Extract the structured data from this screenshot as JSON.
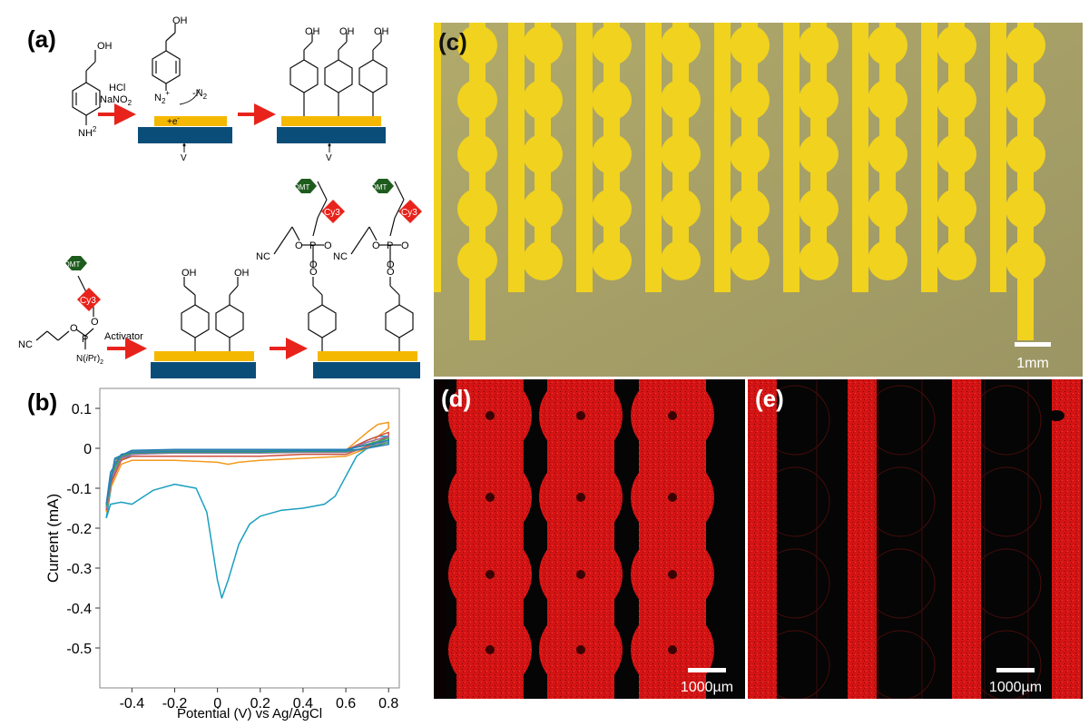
{
  "labels": {
    "a": "(a)",
    "b": "(b)",
    "c": "(c)",
    "d": "(d)",
    "e": "(e)"
  },
  "scheme": {
    "oh": "OH",
    "nh2": "NH",
    "nh2_sup": "2",
    "hcl": "HCl",
    "nano2": "NaNO",
    "nano2_sub": "2",
    "n2plus": "N",
    "n2plus_sub": "2",
    "n2plus_sup": "+",
    "minus_n2": "-N",
    "minus_n2_sub": "2",
    "electron": "+e",
    "electron_sup": "-",
    "voltage": "V",
    "dmt": "DMT",
    "cy3": "Cy3",
    "nc": "NC",
    "o": "O",
    "p": "P",
    "n_ipr": "N",
    "n_ipr_mid": "(",
    "n_ipr_i": "i",
    "n_ipr_pr": "Pr)",
    "n_ipr_sub": "2",
    "activator": "Activator",
    "colors": {
      "arrow": "#e8231b",
      "gold": "#f5b800",
      "substrate": "#0a4d78",
      "dmt": "#1e5c1e",
      "cy3": "#e8231b"
    }
  },
  "microscopy": {
    "scale_c": "1mm",
    "scale_d": "1000µm",
    "scale_e": "1000µm",
    "colors": {
      "gold": "#f1d21e",
      "background_c": "#a8a064",
      "fluor": "#d41414"
    }
  },
  "chart_data": {
    "type": "line",
    "xlabel": "Potential (V) vs Ag/AgCl",
    "ylabel": "Current (mA)",
    "xlim": [
      -0.55,
      0.85
    ],
    "ylim": [
      -0.6,
      0.15
    ],
    "xticks": [
      -0.4,
      -0.2,
      0.0,
      0.2,
      0.4,
      0.6,
      0.8
    ],
    "xtick_labels": [
      "-0.4",
      "-0.2",
      "0",
      "0.2",
      "0.4",
      "0.6",
      "0.8"
    ],
    "yticks": [
      0.1,
      0.0,
      -0.1,
      -0.2,
      -0.3,
      -0.4,
      -0.5
    ],
    "ytick_labels": [
      "0.1",
      "0",
      "-0.1",
      "-0.2",
      "-0.3",
      "-0.4",
      "-0.5"
    ],
    "grid": false,
    "series": [
      {
        "color": "#1a9fbf",
        "x": [
          -0.52,
          -0.5,
          -0.45,
          -0.4,
          -0.3,
          -0.2,
          -0.1,
          -0.05,
          0.0,
          0.02,
          0.05,
          0.1,
          0.15,
          0.2,
          0.3,
          0.4,
          0.5,
          0.55,
          0.6,
          0.65,
          0.7,
          0.75,
          0.8,
          0.8,
          0.75,
          0.7,
          0.6,
          0.5,
          0.4,
          0.2,
          0.0,
          -0.2,
          -0.4,
          -0.48,
          -0.52
        ],
        "y": [
          -0.175,
          -0.14,
          -0.135,
          -0.14,
          -0.105,
          -0.09,
          -0.1,
          -0.16,
          -0.33,
          -0.375,
          -0.33,
          -0.24,
          -0.19,
          -0.17,
          -0.155,
          -0.15,
          -0.14,
          -0.12,
          -0.07,
          -0.02,
          0.0,
          0.015,
          0.02,
          0.03,
          0.03,
          0.02,
          -0.01,
          -0.01,
          -0.01,
          -0.01,
          -0.01,
          -0.01,
          -0.015,
          -0.04,
          -0.175
        ]
      },
      {
        "color": "#f39a1e",
        "x": [
          -0.52,
          -0.5,
          -0.45,
          -0.4,
          -0.2,
          0.0,
          0.05,
          0.1,
          0.2,
          0.4,
          0.6,
          0.7,
          0.75,
          0.8,
          0.8,
          0.75,
          0.7,
          0.6,
          0.4,
          0.2,
          0.0,
          -0.2,
          -0.4,
          -0.48,
          -0.52
        ],
        "y": [
          -0.16,
          -0.1,
          -0.04,
          -0.03,
          -0.03,
          -0.035,
          -0.04,
          -0.035,
          -0.03,
          -0.025,
          -0.02,
          0.0,
          0.03,
          0.05,
          0.065,
          0.06,
          0.04,
          -0.005,
          -0.005,
          -0.005,
          -0.005,
          -0.005,
          -0.01,
          -0.04,
          -0.16
        ]
      },
      {
        "color": "#d0503c",
        "x": [
          -0.52,
          -0.5,
          -0.45,
          -0.4,
          -0.2,
          0.0,
          0.2,
          0.4,
          0.6,
          0.7,
          0.8,
          0.8,
          0.7,
          0.6,
          0.4,
          0.2,
          0.0,
          -0.2,
          -0.4,
          -0.48,
          -0.52
        ],
        "y": [
          -0.155,
          -0.09,
          -0.03,
          -0.02,
          -0.02,
          -0.02,
          -0.02,
          -0.015,
          -0.015,
          0.005,
          0.03,
          0.04,
          0.02,
          -0.005,
          -0.005,
          -0.005,
          -0.005,
          -0.005,
          -0.01,
          -0.035,
          -0.155
        ]
      },
      {
        "color": "#9a6fb0",
        "x": [
          -0.52,
          -0.5,
          -0.45,
          -0.4,
          -0.2,
          0.0,
          0.2,
          0.4,
          0.6,
          0.7,
          0.8,
          0.8,
          0.7,
          0.6,
          0.4,
          0.2,
          0.0,
          -0.2,
          -0.4,
          -0.48,
          -0.52
        ],
        "y": [
          -0.15,
          -0.08,
          -0.025,
          -0.015,
          -0.012,
          -0.012,
          -0.012,
          -0.01,
          -0.01,
          0.0,
          0.02,
          0.03,
          0.015,
          -0.005,
          -0.005,
          -0.005,
          -0.005,
          -0.005,
          -0.008,
          -0.03,
          -0.15
        ]
      },
      {
        "color": "#3aa35a",
        "x": [
          -0.52,
          -0.5,
          -0.45,
          -0.4,
          -0.2,
          0.0,
          0.2,
          0.4,
          0.6,
          0.7,
          0.8,
          0.8,
          0.7,
          0.6,
          0.4,
          0.2,
          0.0,
          -0.2,
          -0.4,
          -0.48,
          -0.52
        ],
        "y": [
          -0.145,
          -0.07,
          -0.02,
          -0.012,
          -0.01,
          -0.01,
          -0.01,
          -0.008,
          -0.008,
          0.0,
          0.015,
          0.025,
          0.01,
          -0.004,
          -0.004,
          -0.004,
          -0.004,
          -0.004,
          -0.006,
          -0.028,
          -0.145
        ]
      },
      {
        "color": "#2a7fb8",
        "x": [
          -0.52,
          -0.5,
          -0.45,
          -0.4,
          -0.2,
          0.0,
          0.2,
          0.4,
          0.6,
          0.7,
          0.8,
          0.8,
          0.7,
          0.6,
          0.4,
          0.2,
          0.0,
          -0.2,
          -0.4,
          -0.48,
          -0.52
        ],
        "y": [
          -0.14,
          -0.06,
          -0.015,
          -0.01,
          -0.008,
          -0.008,
          -0.008,
          -0.006,
          -0.006,
          0.0,
          0.01,
          0.02,
          0.008,
          -0.003,
          -0.003,
          -0.003,
          -0.003,
          -0.003,
          -0.005,
          -0.025,
          -0.14
        ]
      }
    ]
  }
}
